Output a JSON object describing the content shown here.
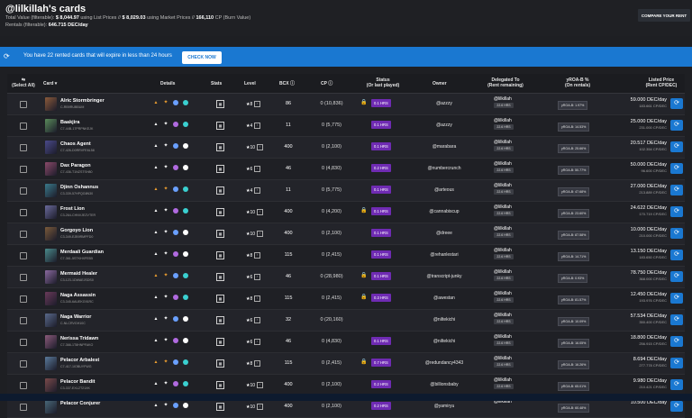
{
  "header": {
    "title": "@lilkillah's cards",
    "total_value_label": "Total Value (filterable):",
    "total_value_list": "$ 8,044.97",
    "total_value_list_suffix": "using List Prices //",
    "total_value_market": "$ 8,029.03",
    "total_value_market_suffix": "using Market Prices //",
    "total_cp": "166,110",
    "total_cp_suffix": "CP (Burn Value)",
    "rentals_label": "Rentals (filterable):",
    "rentals_value": "646.715 DEC/day",
    "compare_button": "COMPARE YOUR RENT"
  },
  "notice": {
    "text": "You have 22 rented cards that will expire in less than 24 hours",
    "button": "CHECK NOW"
  },
  "columns": {
    "select_all": "Select All",
    "card": "Card",
    "details": "Details",
    "stats": "Stats",
    "level": "Level",
    "bcx": "BCX",
    "cp": "CP",
    "status": "Status",
    "status_sub": "(Or last played)",
    "owner": "Owner",
    "delegated": "Delegated To",
    "delegated_sub": "(Rent remaining)",
    "yroa": "yROA-B %",
    "yroa_sub": "(On rentals)",
    "listed": "Listed Price",
    "listed_sub": "(Rent CP/DEC)"
  },
  "rows": [
    {
      "name": "Alric Stormbringer",
      "uid": "C-RB9RUBBUM",
      "level": "★8",
      "bcx": "86",
      "cp": "0 (10,836)",
      "status": "0.1 HRS",
      "lock": true,
      "owner": "@azzzy",
      "deleg": "@lilkillah",
      "deleg_tag": "22.6 HRS",
      "yroa": "yROA-B: 1.97%",
      "price": "59.000 DEC/day",
      "price2": "183.661 CP/DEC"
    },
    {
      "name": "Baakjira",
      "uid": "C7-44B-17PRPNKEJK",
      "level": "★4",
      "bcx": "11",
      "cp": "0 (5,775)",
      "status": "0.1 HRS",
      "lock": false,
      "owner": "@azzzy",
      "deleg": "@lilkillah",
      "deleg_tag": "22.6 HRS",
      "yroa": "yROA-B: 14.53%",
      "price": "25.000 DEC/day",
      "price2": "231.000 CP/DEC"
    },
    {
      "name": "Chaos Agent",
      "uid": "C7-426-D0RRVFE6L58",
      "level": "★10",
      "bcx": "400",
      "cp": "0 (2,100)",
      "status": "0.1 HRS",
      "lock": false,
      "owner": "@marabara",
      "deleg": "@lilkillah",
      "deleg_tag": "22.6 HRS",
      "yroa": "yROA-B: 25.66%",
      "price": "20.517 DEC/day",
      "price2": "102.354 CP/DEC"
    },
    {
      "name": "Dax Paragon",
      "uid": "C7-436-T1NZSTSH80",
      "level": "★6",
      "bcx": "46",
      "cp": "0 (4,830)",
      "status": "0.2 HRS",
      "lock": false,
      "owner": "@numbercrunch",
      "deleg": "@lilkillah",
      "deleg_tag": "22.6 HRS",
      "yroa": "yROA-B: 50.77%",
      "price": "50.000 DEC/day",
      "price2": "96.600 CP/DEC"
    },
    {
      "name": "Djinn Oshannus",
      "uid": "C3-339-57HPQG8N30",
      "level": "★4",
      "bcx": "11",
      "cp": "0 (5,775)",
      "status": "0.1 HRS",
      "lock": false,
      "owner": "@arteous",
      "deleg": "@lilkillah",
      "deleg_tag": "22.6 HRS",
      "yroa": "yROA-B: 47.68%",
      "price": "27.000 DEC/day",
      "price2": "213.889 CP/DEC"
    },
    {
      "name": "Frost Lion",
      "uid": "C3-264-CHNVJEZVTER",
      "level": "★10",
      "bcx": "400",
      "cp": "0 (4,200)",
      "status": "0.1 HRS",
      "lock": true,
      "owner": "@cannabiscup",
      "deleg": "@lilkillah",
      "deleg_tag": "22.6 HRS",
      "yroa": "yROA-B: 23.60%",
      "price": "24.622 DEC/day",
      "price2": "170.719 CP/DEC"
    },
    {
      "name": "Gorgoyo Lion",
      "uid": "C3-349-EJB9RMPFD0",
      "level": "★10",
      "bcx": "400",
      "cp": "0 (2,100)",
      "status": "0.1 HRS",
      "lock": false,
      "owner": "@dreee",
      "deleg": "@lilkillah",
      "deleg_tag": "22.6 HRS",
      "yroa": "yROA-B: 87.58%",
      "price": "10.000 DEC/day",
      "price2": "210.000 CP/DEC"
    },
    {
      "name": "Merdaali Guardian",
      "uid": "C7-361-5STKHXFEB5",
      "level": "★8",
      "bcx": "115",
      "cp": "0 (2,415)",
      "status": "0.1 HRS",
      "lock": false,
      "owner": "@rehanlestari",
      "deleg": "@lilkillah",
      "deleg_tag": "22.6 HRS",
      "yroa": "yROA-B: 14.71%",
      "price": "13.150 DEC/day",
      "price2": "183.650 CP/DEC"
    },
    {
      "name": "Mermaid Healer",
      "uid": "C3-123-1DWAEJSDS0",
      "level": "★6",
      "bcx": "46",
      "cp": "0 (28,980)",
      "status": "0.1 HRS",
      "lock": true,
      "owner": "@transcript-junky",
      "deleg": "@lilkillah",
      "deleg_tag": "22.6 HRS",
      "yroa": "yROA-B: 0.93%",
      "price": "78.750 DEC/day",
      "price2": "368.000 CP/DEC"
    },
    {
      "name": "Naga Assassin",
      "uid": "C3-345-6AUEKG91RC",
      "level": "★8",
      "bcx": "115",
      "cp": "0 (2,415)",
      "status": "0.3 HRS",
      "lock": true,
      "owner": "@awestan",
      "deleg": "@lilkillah",
      "deleg_tag": "22.6 HRS",
      "yroa": "yROA-B: 81.57%",
      "price": "12.450 DEC/day",
      "price2": "193.976 CP/DEC"
    },
    {
      "name": "Naga Warrior",
      "uid": "C-NLCRVGH10C",
      "level": "★6",
      "bcx": "32",
      "cp": "0 (20,160)",
      "status": "",
      "lock": false,
      "owner": "@niltekichi",
      "deleg": "@lilkillah",
      "deleg_tag": "22.6 HRS",
      "yroa": "yROA-B: 10.09%",
      "price": "57.534 DEC/day",
      "price2": "350.400 CP/DEC"
    },
    {
      "name": "Nerissa Tridawn",
      "uid": "C7-366-1T8HNPFAKO",
      "level": "★6",
      "bcx": "46",
      "cp": "0 (4,830)",
      "status": "0.1 HRS",
      "lock": false,
      "owner": "@niltekichi",
      "deleg": "@lilkillah",
      "deleg_tag": "22.6 HRS",
      "yroa": "yROA-B: 16.05%",
      "price": "18.800 DEC/day",
      "price2": "256.915 CP/DEC"
    },
    {
      "name": "Pelacor Arbalest",
      "uid": "C7-417-1IOBUYFWG",
      "level": "★8",
      "bcx": "115",
      "cp": "0 (2,415)",
      "status": "0.7 HRS",
      "lock": true,
      "owner": "@redundancy4343",
      "deleg": "@lilkillah",
      "deleg_tag": "22.6 HRS",
      "yroa": "yROA-B: 16.26%",
      "price": "8.694 DEC/day",
      "price2": "277.778 CP/DEC"
    },
    {
      "name": "Pelacor Bandit",
      "uid": "C3-337-EXLZT21XK",
      "level": "★10",
      "bcx": "400",
      "cp": "0 (2,100)",
      "status": "0.2 HRS",
      "lock": false,
      "owner": "@billionsbaby",
      "deleg": "@lilkillah",
      "deleg_tag": "22.6 HRS",
      "yroa": "yROA-B: 65.01%",
      "price": "9.980 DEC/day",
      "price2": "210.421 CP/DEC"
    },
    {
      "name": "Pelacor Conjurer",
      "uid": "",
      "level": "★10",
      "bcx": "400",
      "cp": "0 (2,100)",
      "status": "0.2 HRS",
      "lock": false,
      "owner": "@yamiryu",
      "deleg": "@lilkillah",
      "deleg_tag": "",
      "yroa": "yROA-B: 60.48%",
      "price": "10.500 DEC/day",
      "price2": ""
    }
  ]
}
